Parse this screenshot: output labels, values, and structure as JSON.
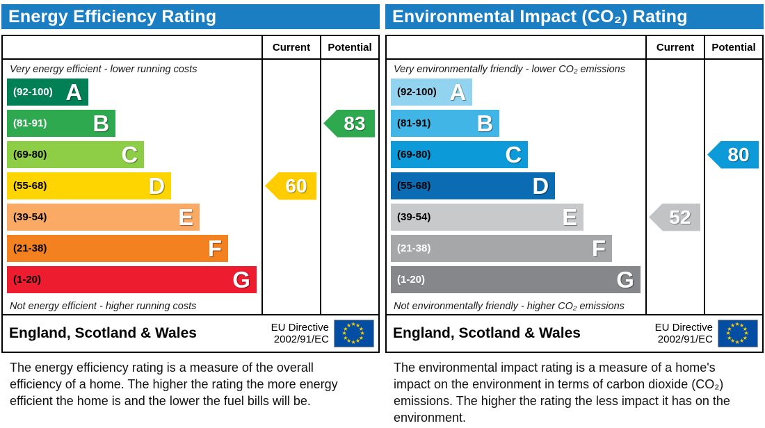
{
  "page": {
    "background": "#ffffff"
  },
  "chart_data": [
    {
      "type": "bar",
      "id": "energy-efficiency",
      "title": "Energy Efficiency Rating",
      "header_bg": "#1b7ec3",
      "columns": {
        "current": "Current",
        "potential": "Potential"
      },
      "top_caption": "Very energy efficient - lower running costs",
      "bottom_caption": "Not energy efficient - higher running costs",
      "bands": [
        {
          "letter": "A",
          "range": "(92-100)",
          "color": "#008054",
          "label_color": "#ffffff",
          "width_pct": 31.5
        },
        {
          "letter": "B",
          "range": "(81-91)",
          "color": "#2ea94f",
          "label_color": "#ffffff",
          "width_pct": 42
        },
        {
          "letter": "C",
          "range": "(69-80)",
          "color": "#8dce46",
          "label_color": "#000000",
          "width_pct": 53
        },
        {
          "letter": "D",
          "range": "(55-68)",
          "color": "#ffd500",
          "label_color": "#000000",
          "width_pct": 63.5
        },
        {
          "letter": "E",
          "range": "(39-54)",
          "color": "#fbaa65",
          "label_color": "#000000",
          "width_pct": 74.5
        },
        {
          "letter": "F",
          "range": "(21-38)",
          "color": "#f48120",
          "label_color": "#000000",
          "width_pct": 85.5
        },
        {
          "letter": "G",
          "range": "(1-20)",
          "color": "#ed1c2e",
          "label_color": "#000000",
          "width_pct": 96.5
        }
      ],
      "current": {
        "value": "60",
        "band": "D",
        "color": "#ffcc00"
      },
      "potential": {
        "value": "83",
        "band": "B",
        "color": "#2ea94f"
      },
      "footer": {
        "region": "England, Scotland & Wales",
        "directive_line1": "EU Directive",
        "directive_line2": "2002/91/EC"
      },
      "eu_flag": {
        "bg": "#034ea2",
        "star_color": "#ffcc00",
        "star_count": 12,
        "star_glyph": "★"
      },
      "description": "The energy efficiency rating is a measure of the overall efficiency of a home. The higher the rating the more energy efficient the home is and the lower the fuel bills will be."
    },
    {
      "type": "bar",
      "id": "environmental-impact",
      "title": "Environmental Impact (CO₂) Rating",
      "header_bg": "#1b7ec3",
      "columns": {
        "current": "Current",
        "potential": "Potential"
      },
      "top_caption": "Very environmentally friendly - lower CO₂ emissions",
      "bottom_caption": "Not environmentally friendly - higher CO₂ emissions",
      "bands": [
        {
          "letter": "A",
          "range": "(92-100)",
          "color": "#92d4f0",
          "label_color": "#000000",
          "width_pct": 31.5
        },
        {
          "letter": "B",
          "range": "(81-91)",
          "color": "#41b6e6",
          "label_color": "#000000",
          "width_pct": 42
        },
        {
          "letter": "C",
          "range": "(69-80)",
          "color": "#0c9bd8",
          "label_color": "#000000",
          "width_pct": 53
        },
        {
          "letter": "D",
          "range": "(55-68)",
          "color": "#0c6cb3",
          "label_color": "#000000",
          "width_pct": 63.5
        },
        {
          "letter": "E",
          "range": "(39-54)",
          "color": "#c8c9cb",
          "label_color": "#000000",
          "width_pct": 74.5
        },
        {
          "letter": "F",
          "range": "(21-38)",
          "color": "#a6a7a9",
          "label_color": "#ffffff",
          "width_pct": 85.5
        },
        {
          "letter": "G",
          "range": "(1-20)",
          "color": "#85878a",
          "label_color": "#ffffff",
          "width_pct": 96.5
        }
      ],
      "current": {
        "value": "52",
        "band": "E",
        "color": "#c2c3c5"
      },
      "potential": {
        "value": "80",
        "band": "C",
        "color": "#0c9bd8"
      },
      "footer": {
        "region": "England, Scotland & Wales",
        "directive_line1": "EU Directive",
        "directive_line2": "2002/91/EC"
      },
      "eu_flag": {
        "bg": "#034ea2",
        "star_color": "#ffcc00",
        "star_count": 12,
        "star_glyph": "★"
      },
      "description": "The environmental impact rating is a measure of a home's impact on the environment in terms of carbon dioxide (CO₂) emissions. The higher the rating the less impact it has on the environment."
    }
  ]
}
